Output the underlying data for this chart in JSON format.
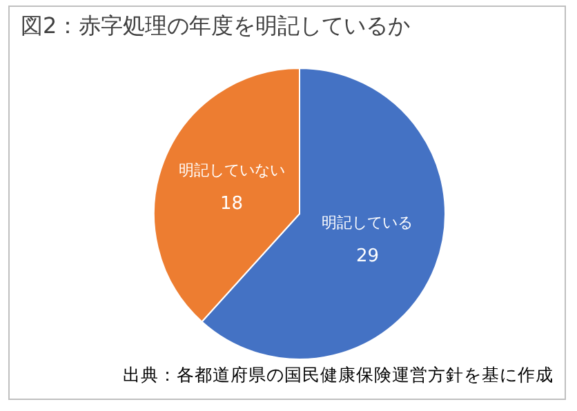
{
  "chart_data": {
    "type": "pie",
    "title": "図2：赤字処理の年度を明記しているか",
    "categories": [
      "明記している",
      "明記していない"
    ],
    "values": [
      29,
      18
    ],
    "colors": [
      "#4472c4",
      "#ed7d31"
    ],
    "data_labels": true,
    "legend": false,
    "annotations": [
      "出典：各都道府県の国民健康保険運営方針を基に作成"
    ]
  }
}
